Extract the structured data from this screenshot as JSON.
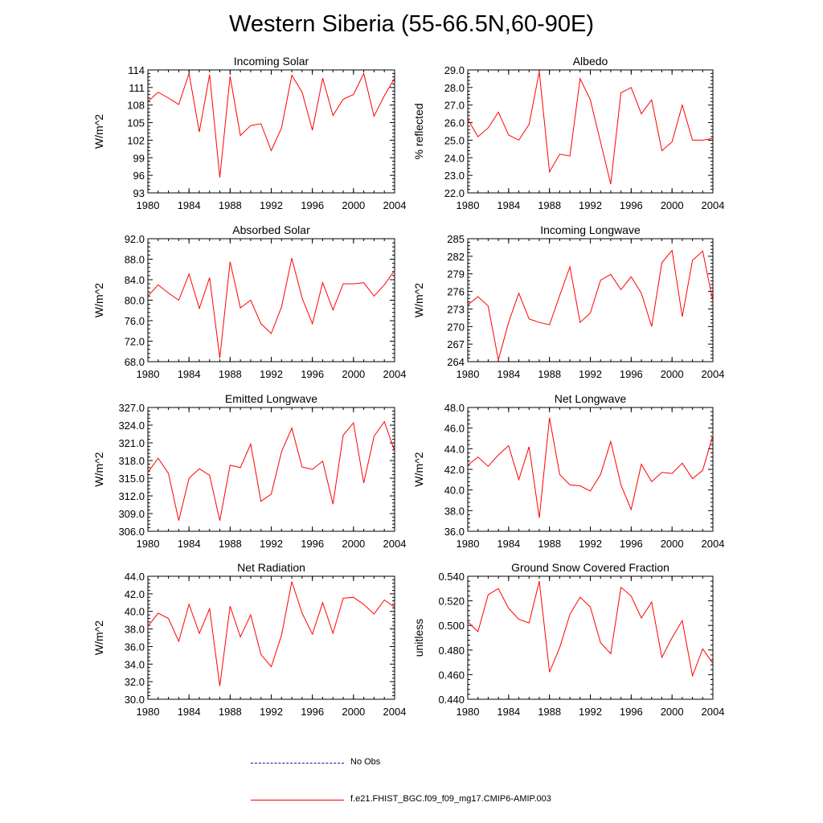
{
  "page": {
    "title": "Western Siberia (55-66.5N,60-90E)"
  },
  "colors": {
    "model": "#ff0000",
    "obs": "#1010a0",
    "axis": "#000000"
  },
  "legend": {
    "obs_label": "No Obs",
    "model_label": "f.e21.FHIST_BGC.f09_f09_mg17.CMIP6-AMIP.003"
  },
  "chart_data": [
    {
      "type": "line",
      "title": "Incoming Solar",
      "ylabel": "W/m^2",
      "xlabel": "",
      "xlim": [
        1980,
        2004
      ],
      "ylim": [
        93,
        114
      ],
      "grid": false,
      "x_ticks": [
        1980,
        1984,
        1988,
        1992,
        1996,
        2000,
        2004
      ],
      "y_ticks": [
        93,
        96,
        99,
        102,
        105,
        108,
        111,
        114
      ],
      "y_decimals": 0,
      "series": [
        {
          "name": "f.e21.FHIST_BGC.f09_f09_mg17.CMIP6-AMIP.003",
          "x": [
            1980,
            1981,
            1982,
            1983,
            1984,
            1985,
            1986,
            1987,
            1988,
            1989,
            1990,
            1991,
            1992,
            1993,
            1994,
            1995,
            1996,
            1997,
            1998,
            1999,
            2000,
            2001,
            2002,
            2003,
            2004
          ],
          "values": [
            108.6,
            110.2,
            109.2,
            108.1,
            113.4,
            103.4,
            113.2,
            95.6,
            112.9,
            102.8,
            104.5,
            104.8,
            100.2,
            104.1,
            113.1,
            110.2,
            103.7,
            112.6,
            106.2,
            109.0,
            109.8,
            113.4,
            106.1,
            109.6,
            112.6
          ]
        }
      ]
    },
    {
      "type": "line",
      "title": "Albedo",
      "ylabel": "% reflected",
      "xlabel": "",
      "xlim": [
        1980,
        2004
      ],
      "ylim": [
        22,
        29
      ],
      "grid": false,
      "x_ticks": [
        1980,
        1984,
        1988,
        1992,
        1996,
        2000,
        2004
      ],
      "y_ticks": [
        22,
        23,
        24,
        25,
        26,
        27,
        28,
        29
      ],
      "y_decimals": 1,
      "series": [
        {
          "name": "f.e21.FHIST_BGC.f09_f09_mg17.CMIP6-AMIP.003",
          "x": [
            1980,
            1981,
            1982,
            1983,
            1984,
            1985,
            1986,
            1987,
            1988,
            1989,
            1990,
            1991,
            1992,
            1993,
            1994,
            1995,
            1996,
            1997,
            1998,
            1999,
            2000,
            2001,
            2002,
            2003,
            2004
          ],
          "values": [
            26.2,
            25.2,
            25.7,
            26.6,
            25.3,
            25.0,
            25.9,
            28.9,
            23.2,
            24.2,
            24.1,
            28.5,
            27.3,
            24.9,
            22.5,
            27.7,
            28.0,
            26.5,
            27.3,
            24.4,
            24.9,
            27.0,
            25.0,
            25.0,
            25.1
          ]
        }
      ]
    },
    {
      "type": "line",
      "title": "Absorbed Solar",
      "ylabel": "W/m^2",
      "xlabel": "",
      "xlim": [
        1980,
        2004
      ],
      "ylim": [
        68,
        92
      ],
      "grid": false,
      "x_ticks": [
        1980,
        1984,
        1988,
        1992,
        1996,
        2000,
        2004
      ],
      "y_ticks": [
        68,
        72,
        76,
        80,
        84,
        88,
        92
      ],
      "y_decimals": 1,
      "series": [
        {
          "name": "f.e21.FHIST_BGC.f09_f09_mg17.CMIP6-AMIP.003",
          "x": [
            1980,
            1981,
            1982,
            1983,
            1984,
            1985,
            1986,
            1987,
            1988,
            1989,
            1990,
            1991,
            1992,
            1993,
            1994,
            1995,
            1996,
            1997,
            1998,
            1999,
            2000,
            2001,
            2002,
            2003,
            2004
          ],
          "values": [
            80.8,
            83.0,
            81.4,
            80.0,
            85.1,
            78.4,
            84.4,
            68.7,
            87.5,
            78.5,
            80.0,
            75.4,
            73.5,
            78.7,
            88.2,
            80.4,
            75.4,
            83.4,
            78.1,
            83.2,
            83.2,
            83.4,
            80.8,
            83.0,
            85.8
          ]
        }
      ]
    },
    {
      "type": "line",
      "title": "Incoming Longwave",
      "ylabel": "W/m^2",
      "xlabel": "",
      "xlim": [
        1980,
        2004
      ],
      "ylim": [
        264,
        285
      ],
      "grid": false,
      "x_ticks": [
        1980,
        1984,
        1988,
        1992,
        1996,
        2000,
        2004
      ],
      "y_ticks": [
        264,
        267,
        270,
        273,
        276,
        279,
        282,
        285
      ],
      "y_decimals": 0,
      "series": [
        {
          "name": "f.e21.FHIST_BGC.f09_f09_mg17.CMIP6-AMIP.003",
          "x": [
            1980,
            1981,
            1982,
            1983,
            1984,
            1985,
            1986,
            1987,
            1988,
            1989,
            1990,
            1991,
            1992,
            1993,
            1994,
            1995,
            1996,
            1997,
            1998,
            1999,
            2000,
            2001,
            2002,
            2003,
            2004
          ],
          "values": [
            273.7,
            275.1,
            273.5,
            264.3,
            270.7,
            275.7,
            271.3,
            270.7,
            270.3,
            275.3,
            280.2,
            270.7,
            272.3,
            277.9,
            278.9,
            276.3,
            278.5,
            275.7,
            270.0,
            280.9,
            283.0,
            271.7,
            281.3,
            282.9,
            274.3
          ]
        }
      ]
    },
    {
      "type": "line",
      "title": "Emitted Longwave",
      "ylabel": "W/m^2",
      "xlabel": "",
      "xlim": [
        1980,
        2004
      ],
      "ylim": [
        306,
        327
      ],
      "grid": false,
      "x_ticks": [
        1980,
        1984,
        1988,
        1992,
        1996,
        2000,
        2004
      ],
      "y_ticks": [
        306,
        309,
        312,
        315,
        318,
        321,
        324,
        327
      ],
      "y_decimals": 1,
      "series": [
        {
          "name": "f.e21.FHIST_BGC.f09_f09_mg17.CMIP6-AMIP.003",
          "x": [
            1980,
            1981,
            1982,
            1983,
            1984,
            1985,
            1986,
            1987,
            1988,
            1989,
            1990,
            1991,
            1992,
            1993,
            1994,
            1995,
            1996,
            1997,
            1998,
            1999,
            2000,
            2001,
            2002,
            2003,
            2004
          ],
          "values": [
            316.0,
            318.4,
            315.8,
            307.8,
            315.0,
            316.6,
            315.5,
            307.8,
            317.2,
            316.8,
            320.8,
            311.1,
            312.3,
            319.5,
            323.5,
            316.9,
            316.5,
            317.9,
            310.6,
            322.3,
            324.4,
            314.2,
            322.1,
            324.6,
            319.6
          ]
        }
      ]
    },
    {
      "type": "line",
      "title": "Net Longwave",
      "ylabel": "W/m^2",
      "xlabel": "",
      "xlim": [
        1980,
        2004
      ],
      "ylim": [
        36,
        48
      ],
      "grid": false,
      "x_ticks": [
        1980,
        1984,
        1988,
        1992,
        1996,
        2000,
        2004
      ],
      "y_ticks": [
        36,
        38,
        40,
        42,
        44,
        46,
        48
      ],
      "y_decimals": 1,
      "series": [
        {
          "name": "f.e21.FHIST_BGC.f09_f09_mg17.CMIP6-AMIP.003",
          "x": [
            1980,
            1981,
            1982,
            1983,
            1984,
            1985,
            1986,
            1987,
            1988,
            1989,
            1990,
            1991,
            1992,
            1993,
            1994,
            1995,
            1996,
            1997,
            1998,
            1999,
            2000,
            2001,
            2002,
            2003,
            2004
          ],
          "values": [
            42.4,
            43.2,
            42.3,
            43.4,
            44.3,
            41.0,
            44.2,
            37.3,
            47.0,
            41.5,
            40.5,
            40.4,
            39.9,
            41.5,
            44.7,
            40.5,
            38.1,
            42.5,
            40.8,
            41.7,
            41.6,
            42.6,
            41.1,
            41.9,
            45.3
          ]
        }
      ]
    },
    {
      "type": "line",
      "title": "Net Radiation",
      "ylabel": "W/m^2",
      "xlabel": "",
      "xlim": [
        1980,
        2004
      ],
      "ylim": [
        30,
        44
      ],
      "grid": false,
      "x_ticks": [
        1980,
        1984,
        1988,
        1992,
        1996,
        2000,
        2004
      ],
      "y_ticks": [
        30,
        32,
        34,
        36,
        38,
        40,
        42,
        44
      ],
      "y_decimals": 1,
      "series": [
        {
          "name": "f.e21.FHIST_BGC.f09_f09_mg17.CMIP6-AMIP.003",
          "x": [
            1980,
            1981,
            1982,
            1983,
            1984,
            1985,
            1986,
            1987,
            1988,
            1989,
            1990,
            1991,
            1992,
            1993,
            1994,
            1995,
            1996,
            1997,
            1998,
            1999,
            2000,
            2001,
            2002,
            2003,
            2004
          ],
          "values": [
            38.3,
            39.8,
            39.2,
            36.6,
            40.8,
            37.5,
            40.3,
            31.5,
            40.6,
            37.1,
            39.6,
            35.1,
            33.7,
            37.3,
            43.4,
            39.8,
            37.4,
            41.0,
            37.5,
            41.5,
            41.6,
            40.8,
            39.7,
            41.3,
            40.5
          ]
        }
      ]
    },
    {
      "type": "line",
      "title": "Ground Snow Covered Fraction",
      "ylabel": "unitless",
      "xlabel": "",
      "xlim": [
        1980,
        2004
      ],
      "ylim": [
        0.44,
        0.54
      ],
      "grid": false,
      "x_ticks": [
        1980,
        1984,
        1988,
        1992,
        1996,
        2000,
        2004
      ],
      "y_ticks": [
        0.44,
        0.46,
        0.48,
        0.5,
        0.52,
        0.54
      ],
      "y_decimals": 3,
      "series": [
        {
          "name": "f.e21.FHIST_BGC.f09_f09_mg17.CMIP6-AMIP.003",
          "x": [
            1980,
            1981,
            1982,
            1983,
            1984,
            1985,
            1986,
            1987,
            1988,
            1989,
            1990,
            1991,
            1992,
            1993,
            1994,
            1995,
            1996,
            1997,
            1998,
            1999,
            2000,
            2001,
            2002,
            2003,
            2004
          ],
          "values": [
            0.503,
            0.495,
            0.525,
            0.53,
            0.514,
            0.505,
            0.502,
            0.536,
            0.462,
            0.482,
            0.509,
            0.523,
            0.515,
            0.486,
            0.477,
            0.531,
            0.524,
            0.506,
            0.519,
            0.474,
            0.49,
            0.504,
            0.459,
            0.481,
            0.469
          ]
        }
      ]
    }
  ]
}
